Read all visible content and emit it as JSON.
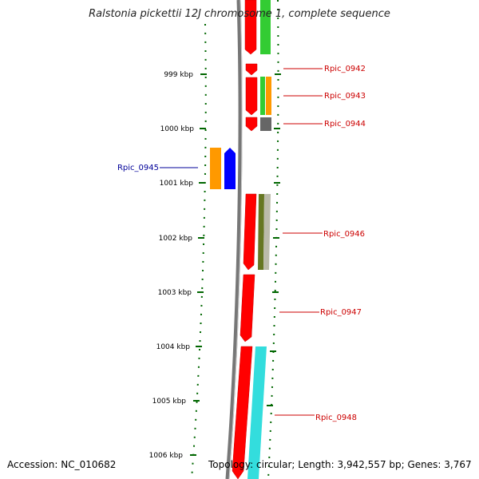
{
  "title": "Ralstonia pickettii 12J chromosome 1, complete sequence",
  "accession": "Accession: NC_010682",
  "topology": "Topology: circular; Length: 3,942,557 bp; Genes: 3,767",
  "ticks": [
    {
      "label": "999 kbp"
    },
    {
      "label": "1000 kbp"
    },
    {
      "label": "1001 kbp"
    },
    {
      "label": "1002 kbp"
    },
    {
      "label": "1003 kbp"
    },
    {
      "label": "1004 kbp"
    },
    {
      "label": "1005 kbp"
    },
    {
      "label": "1006 kbp"
    }
  ],
  "genes": [
    {
      "name": "Rpic_0942",
      "color": "#cc0000"
    },
    {
      "name": "Rpic_0943",
      "color": "#cc0000"
    },
    {
      "name": "Rpic_0944",
      "color": "#cc0000"
    },
    {
      "name": "Rpic_0945",
      "color": "#000099"
    },
    {
      "name": "Rpic_0946",
      "color": "#cc0000"
    },
    {
      "name": "Rpic_0947",
      "color": "#cc0000"
    },
    {
      "name": "Rpic_0948",
      "color": "#cc0000"
    }
  ],
  "colors": {
    "forward_cds": "#ff0000",
    "reverse_cds": "#0000ff",
    "backbone": "#888888",
    "tick_marks": "#006600",
    "cog_green": "#33cc33",
    "cog_orange": "#ff9900",
    "cog_olive": "#667722",
    "cog_gray": "#666666",
    "cog_cyan": "#33dddd"
  }
}
